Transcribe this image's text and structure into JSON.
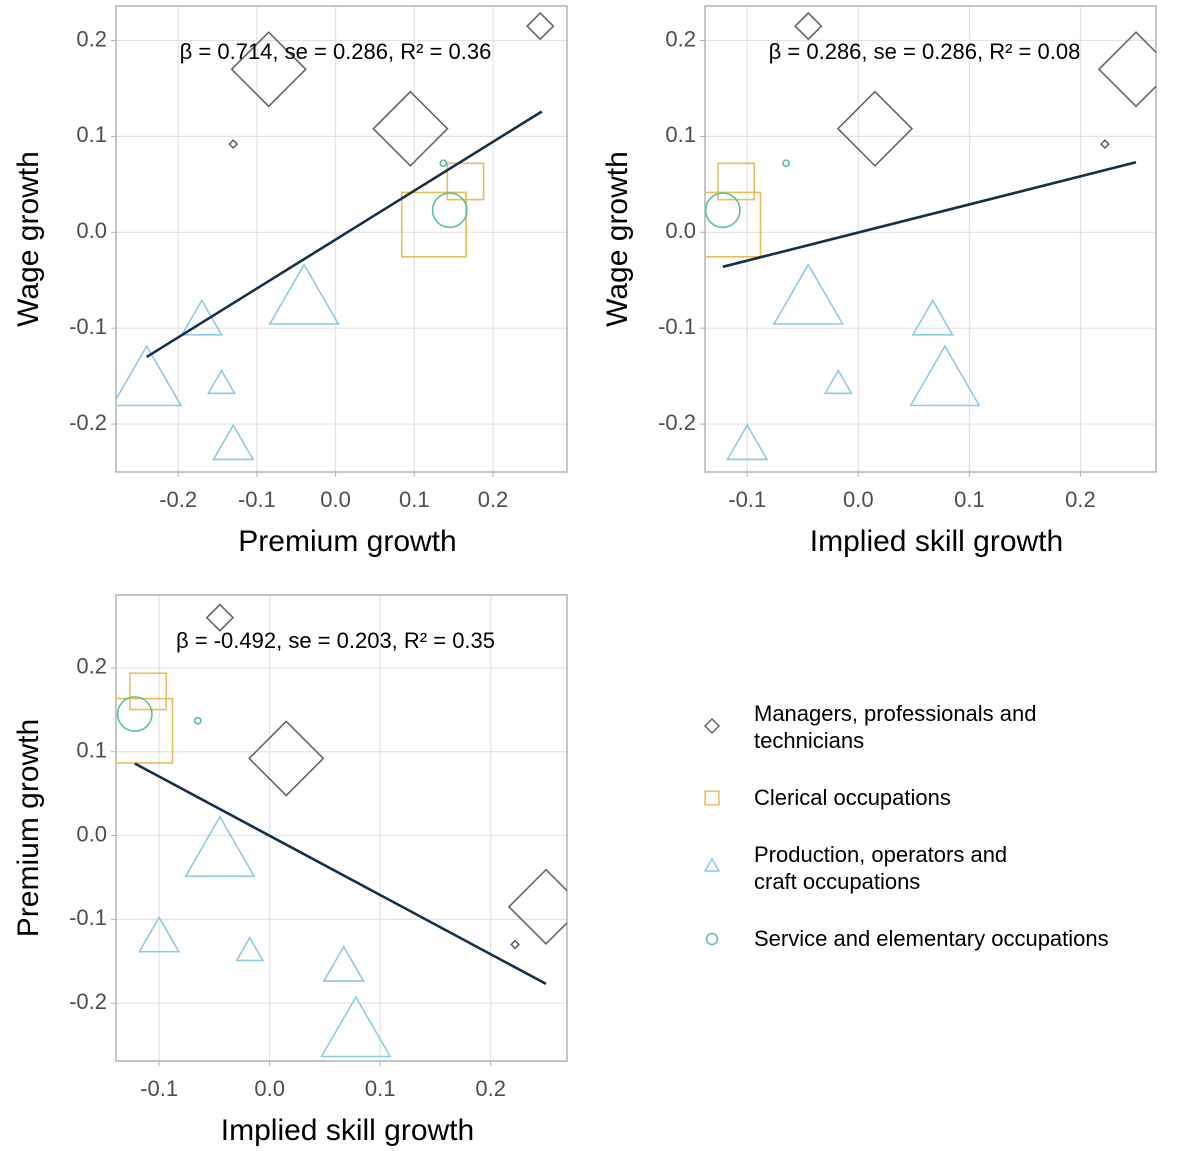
{
  "chart_data": [
    {
      "type": "scatter",
      "x_label": "Premium growth",
      "y_label": "Wage growth",
      "annotation": "β = 0.714, se = 0.286, R² = 0.36",
      "xlim": [
        -0.279,
        0.294
      ],
      "ylim": [
        -0.25,
        0.236
      ],
      "xticks": [
        -0.2,
        -0.1,
        {
          "value": 0,
          "label": "0.0"
        },
        0.1,
        0.2
      ],
      "yticks": [
        -0.2,
        -0.1,
        {
          "value": 0,
          "label": "0.0"
        },
        0.1,
        0.2
      ],
      "grid": true,
      "series": [
        {
          "name": "Managers, professionals and\ntechnicians",
          "color": "#666666",
          "marker": "diamond",
          "x": [
            -0.085,
            -0.13,
            0.095,
            0.26
          ],
          "y": [
            0.17,
            0.092,
            0.108,
            0.215
          ],
          "sizes": [
            28,
            0.3,
            28,
            3.5
          ]
        },
        {
          "name": "Clerical occupations",
          "color": "#e8bd5c",
          "marker": "square",
          "x": [
            0.165,
            0.125
          ],
          "y": [
            0.053,
            0.008
          ],
          "sizes": [
            7,
            22
          ]
        },
        {
          "name": "Production, operators and\ncraft occupations",
          "color": "#8ecae6",
          "marker": "triangle",
          "x": [
            -0.145,
            -0.13,
            -0.17,
            -0.24,
            -0.04
          ],
          "y": [
            -0.16,
            -0.225,
            -0.095,
            -0.16,
            -0.075
          ],
          "sizes": [
            3.5,
            8,
            8,
            24,
            24
          ]
        },
        {
          "name": "Service and elementary occupations",
          "color": "#5cbf9c",
          "marker": "circle",
          "x": [
            0.137,
            0.145
          ],
          "y": [
            0.072,
            0.023
          ],
          "sizes": [
            0.2,
            6
          ]
        }
      ],
      "fit": {
        "color": "#14304a",
        "x": [
          -0.24,
          0.262
        ],
        "y": [
          -0.13,
          0.126
        ]
      }
    },
    {
      "type": "scatter",
      "x_label": "Implied skill growth",
      "y_label": "Wage growth",
      "annotation": "β = 0.286, se = 0.286, R² = 0.08",
      "xlim": [
        -0.138,
        0.268
      ],
      "ylim": [
        -0.25,
        0.236
      ],
      "xticks": [
        -0.1,
        {
          "value": 0,
          "label": "0.0"
        },
        0.1,
        0.2
      ],
      "yticks": [
        -0.2,
        -0.1,
        {
          "value": 0,
          "label": "0.0"
        },
        0.1,
        0.2
      ],
      "grid": true,
      "series": [
        {
          "color": "#666666",
          "marker": "diamond",
          "x": [
            0.25,
            0.222,
            0.015,
            -0.045
          ],
          "y": [
            0.17,
            0.092,
            0.108,
            0.215
          ],
          "sizes": [
            28,
            0.3,
            28,
            3.5
          ]
        },
        {
          "color": "#e8bd5c",
          "marker": "square",
          "x": [
            -0.11,
            -0.117
          ],
          "y": [
            0.053,
            0.008
          ],
          "sizes": [
            7,
            22
          ]
        },
        {
          "color": "#8ecae6",
          "marker": "triangle",
          "x": [
            -0.018,
            -0.1,
            0.067,
            0.078,
            -0.045
          ],
          "y": [
            -0.16,
            -0.225,
            -0.095,
            -0.16,
            -0.075
          ],
          "sizes": [
            3.5,
            8,
            8,
            24,
            24
          ]
        },
        {
          "color": "#5cbf9c",
          "marker": "circle",
          "x": [
            -0.065,
            -0.122
          ],
          "y": [
            0.072,
            0.023
          ],
          "sizes": [
            0.2,
            6
          ]
        }
      ],
      "fit": {
        "color": "#14304a",
        "x": [
          -0.122,
          0.25
        ],
        "y": [
          -0.036,
          0.073
        ]
      }
    },
    {
      "type": "scatter",
      "x_label": "Implied skill growth",
      "y_label": "Premium growth",
      "annotation": "β = -0.492, se = 0.203, R² = 0.35",
      "xlim": [
        -0.139,
        0.269
      ],
      "ylim": [
        -0.269,
        0.287
      ],
      "xticks": [
        -0.1,
        {
          "value": 0,
          "label": "0.0"
        },
        0.1,
        0.2
      ],
      "yticks": [
        -0.2,
        -0.1,
        {
          "value": 0,
          "label": "0.0"
        },
        0.1,
        0.2
      ],
      "grid": true,
      "series": [
        {
          "color": "#666666",
          "marker": "diamond",
          "x": [
            0.25,
            0.222,
            0.015,
            -0.045
          ],
          "y": [
            -0.085,
            -0.13,
            0.092,
            0.26
          ],
          "sizes": [
            28,
            0.3,
            28,
            3.5
          ]
        },
        {
          "color": "#e8bd5c",
          "marker": "square",
          "x": [
            -0.11,
            -0.117
          ],
          "y": [
            0.172,
            0.125
          ],
          "sizes": [
            7,
            22
          ]
        },
        {
          "color": "#8ecae6",
          "marker": "triangle",
          "x": [
            -0.018,
            -0.1,
            0.067,
            0.078,
            -0.045
          ],
          "y": [
            -0.14,
            -0.125,
            -0.16,
            -0.24,
            -0.025
          ],
          "sizes": [
            3.5,
            8,
            8,
            24,
            24
          ]
        },
        {
          "color": "#5cbf9c",
          "marker": "circle",
          "x": [
            -0.065,
            -0.122
          ],
          "y": [
            0.137,
            0.145
          ],
          "sizes": [
            0.2,
            6
          ]
        }
      ],
      "fit": {
        "color": "#14304a",
        "x": [
          -0.122,
          0.25
        ],
        "y": [
          0.086,
          -0.177
        ]
      }
    }
  ]
}
